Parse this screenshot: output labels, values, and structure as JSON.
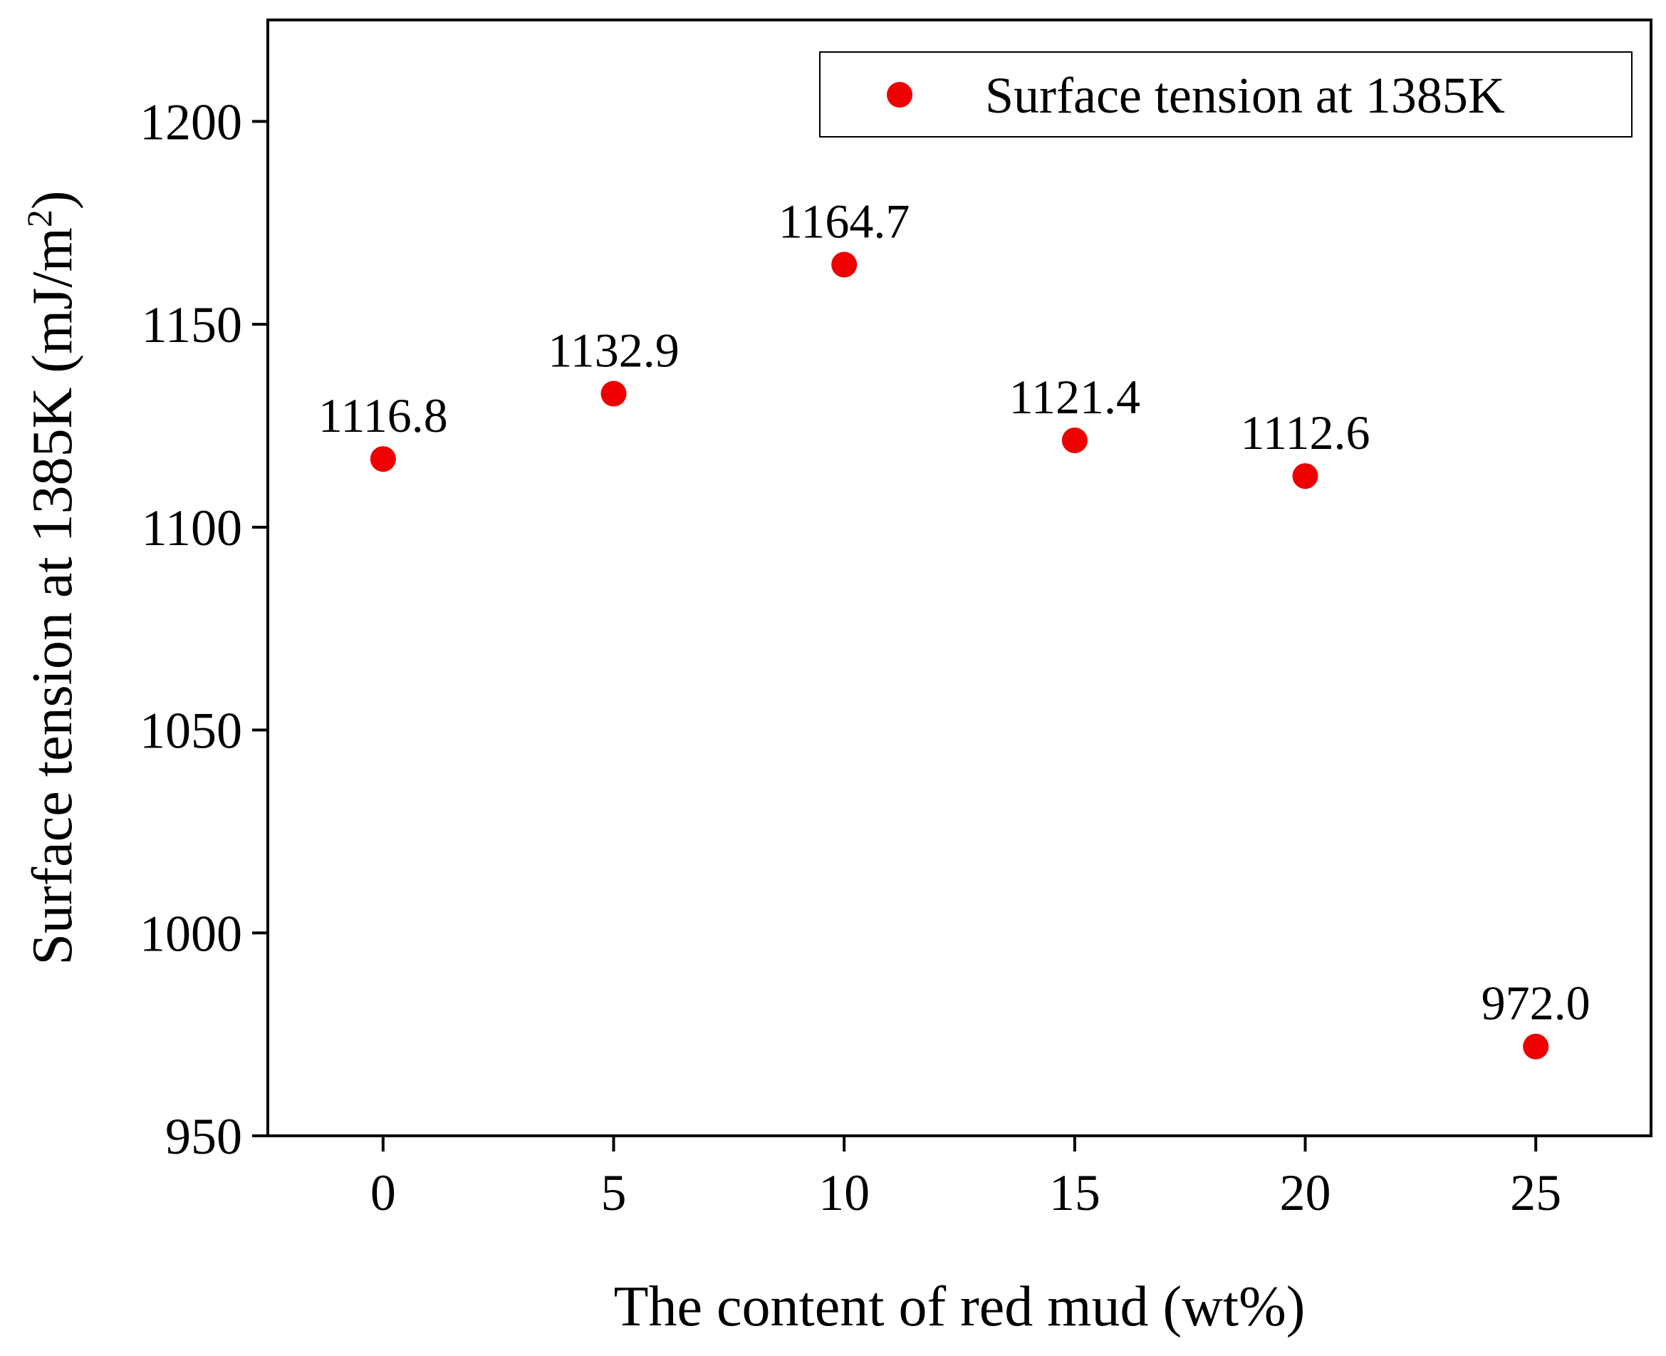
{
  "chart_data": {
    "type": "scatter",
    "xlabel": "The content of red mud (wt%)",
    "ylabel_main": "Surface tension at 1385K (mJ/m",
    "ylabel_sup": "2",
    "ylabel_close": ")",
    "xlim": [
      -2.5,
      27.5
    ],
    "ylim": [
      950,
      1225
    ],
    "xticks": [
      0,
      5,
      10,
      15,
      20,
      25
    ],
    "yticks": [
      950,
      1000,
      1050,
      1100,
      1150,
      1200
    ],
    "xtick_labels": [
      "0",
      "5",
      "10",
      "15",
      "20",
      "25"
    ],
    "ytick_labels": [
      "950",
      "1000",
      "1050",
      "1100",
      "1150",
      "1200"
    ],
    "legend": {
      "position": "top-right",
      "entries": [
        "Surface tension at 1385K"
      ]
    },
    "series": [
      {
        "name": "Surface tension at 1385K",
        "color": "#ee0000",
        "x": [
          0,
          5,
          10,
          15,
          20,
          25
        ],
        "y": [
          1116.8,
          1132.9,
          1164.7,
          1121.4,
          1112.6,
          972.0
        ],
        "labels": [
          "1116.8",
          "1132.9",
          "1164.7",
          "1121.4",
          "1112.6",
          "972.0"
        ]
      }
    ]
  }
}
